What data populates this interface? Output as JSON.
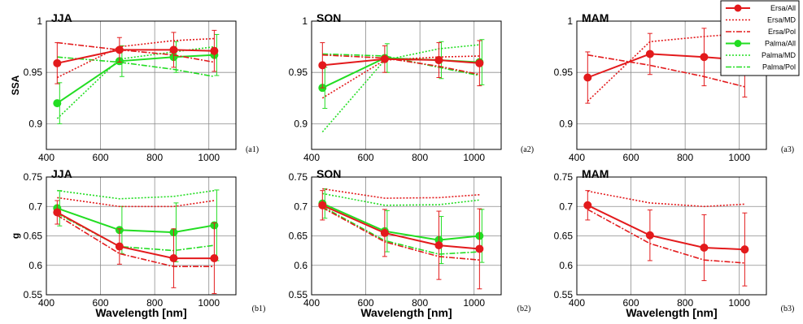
{
  "colors": {
    "ersa": "#e31a1c",
    "palma": "#22dd22",
    "grid": "#8c8c8c",
    "axis": "#000000"
  },
  "legend": {
    "placement": "top-right",
    "entries": [
      {
        "label": "Ersa/All",
        "color": "#e31a1c",
        "style": "solid",
        "marker": true
      },
      {
        "label": "Ersa/MD",
        "color": "#e31a1c",
        "style": "dotted",
        "marker": false
      },
      {
        "label": "Ersa/Pol",
        "color": "#e31a1c",
        "style": "dashdot",
        "marker": false
      },
      {
        "label": "Palma/All",
        "color": "#22dd22",
        "style": "solid",
        "marker": true
      },
      {
        "label": "Palma/MD",
        "color": "#22dd22",
        "style": "dotted",
        "marker": false
      },
      {
        "label": "Palma/Pol",
        "color": "#22dd22",
        "style": "dashdot",
        "marker": false
      }
    ]
  },
  "chart_data": [
    {
      "type": "line",
      "panel": "(a1)",
      "title": "JJA",
      "ylabel": "SSA",
      "xlabel": "",
      "xlim": [
        400,
        1100
      ],
      "ylim": [
        0.875,
        1.0
      ],
      "xticks": [
        "400",
        "600",
        "800",
        "1000"
      ],
      "yticks": [
        "0.9",
        "0.95",
        "1"
      ],
      "x": [
        440,
        670,
        870,
        1020
      ],
      "series": [
        {
          "name": "Ersa/All",
          "values": [
            0.959,
            0.972,
            0.972,
            0.971
          ],
          "err": [
            0.02,
            0.012,
            0.017,
            0.02
          ]
        },
        {
          "name": "Ersa/MD",
          "values": [
            0.945,
            0.975,
            0.981,
            0.983
          ]
        },
        {
          "name": "Ersa/Pol",
          "values": [
            0.979,
            0.972,
            0.967,
            0.96
          ]
        },
        {
          "name": "Palma/All",
          "values": [
            0.92,
            0.961,
            0.965,
            0.967
          ],
          "err": [
            0.02,
            0.015,
            0.015,
            0.02
          ]
        },
        {
          "name": "Palma/MD",
          "values": [
            0.905,
            0.963,
            0.97,
            0.975
          ]
        },
        {
          "name": "Palma/Pol",
          "values": [
            0.965,
            0.96,
            0.953,
            0.946
          ]
        }
      ]
    },
    {
      "type": "line",
      "panel": "(a2)",
      "title": "SON",
      "ylabel": "",
      "xlabel": "",
      "xlim": [
        400,
        1100
      ],
      "ylim": [
        0.875,
        1.0
      ],
      "xticks": [
        "400",
        "600",
        "800",
        "1000"
      ],
      "yticks": [
        "0.9",
        "0.95",
        "1"
      ],
      "x": [
        440,
        670,
        870,
        1020
      ],
      "series": [
        {
          "name": "Ersa/All",
          "values": [
            0.957,
            0.963,
            0.962,
            0.959
          ],
          "err": [
            0.022,
            0.013,
            0.017,
            0.022
          ]
        },
        {
          "name": "Ersa/MD",
          "values": [
            0.925,
            0.962,
            0.965,
            0.966
          ]
        },
        {
          "name": "Ersa/Pol",
          "values": [
            0.967,
            0.964,
            0.956,
            0.948
          ]
        },
        {
          "name": "Palma/All",
          "values": [
            0.935,
            0.964,
            0.962,
            0.96
          ],
          "err": [
            0.02,
            0.014,
            0.018,
            0.022
          ]
        },
        {
          "name": "Palma/MD",
          "values": [
            0.892,
            0.962,
            0.973,
            0.977
          ]
        },
        {
          "name": "Palma/Pol",
          "values": [
            0.968,
            0.966,
            0.955,
            0.947
          ]
        }
      ]
    },
    {
      "type": "line",
      "panel": "(a3)",
      "title": "MAM",
      "ylabel": "",
      "xlabel": "",
      "xlim": [
        400,
        1100
      ],
      "ylim": [
        0.875,
        1.0
      ],
      "xticks": [
        "400",
        "600",
        "800",
        "1000"
      ],
      "yticks": [
        "0.9",
        "0.95",
        "1"
      ],
      "x": [
        440,
        670,
        870,
        1020
      ],
      "series": [
        {
          "name": "Ersa/All",
          "values": [
            0.945,
            0.968,
            0.965,
            0.962
          ],
          "err": [
            0.025,
            0.02,
            0.028,
            0.036
          ]
        },
        {
          "name": "Ersa/MD",
          "values": [
            0.922,
            0.98,
            0.985,
            0.988
          ]
        },
        {
          "name": "Ersa/Pol",
          "values": [
            0.967,
            0.957,
            0.946,
            0.936
          ]
        }
      ]
    },
    {
      "type": "line",
      "panel": "(b1)",
      "title": "JJA",
      "ylabel": "g",
      "xlabel": "Wavelength [nm]",
      "xlim": [
        400,
        1100
      ],
      "ylim": [
        0.55,
        0.75
      ],
      "xticks": [
        "400",
        "600",
        "800",
        "1000"
      ],
      "yticks": [
        "0.55",
        "0.6",
        "0.65",
        "0.7",
        "0.75"
      ],
      "x": [
        440,
        670,
        870,
        1020
      ],
      "series": [
        {
          "name": "Ersa/All",
          "values": [
            0.69,
            0.632,
            0.612,
            0.612
          ],
          "err": [
            0.02,
            0.03,
            0.05,
            0.06
          ]
        },
        {
          "name": "Ersa/MD",
          "values": [
            0.715,
            0.7,
            0.7,
            0.71
          ]
        },
        {
          "name": "Ersa/Pol",
          "values": [
            0.685,
            0.62,
            0.598,
            0.598
          ]
        },
        {
          "name": "Palma/All",
          "values": [
            0.697,
            0.66,
            0.656,
            0.668
          ],
          "err": [
            0.03,
            0.04,
            0.05,
            0.06
          ]
        },
        {
          "name": "Palma/MD",
          "values": [
            0.727,
            0.713,
            0.717,
            0.727
          ]
        },
        {
          "name": "Palma/Pol",
          "values": [
            0.688,
            0.632,
            0.625,
            0.634
          ]
        }
      ]
    },
    {
      "type": "line",
      "panel": "(b2)",
      "title": "SON",
      "ylabel": "",
      "xlabel": "Wavelength [nm]",
      "xlim": [
        400,
        1100
      ],
      "ylim": [
        0.55,
        0.75
      ],
      "xticks": [
        "400",
        "600",
        "800",
        "1000"
      ],
      "yticks": [
        "0.55",
        "0.6",
        "0.65",
        "0.7",
        "0.75"
      ],
      "x": [
        440,
        670,
        870,
        1020
      ],
      "series": [
        {
          "name": "Ersa/All",
          "values": [
            0.702,
            0.655,
            0.634,
            0.628
          ],
          "err": [
            0.025,
            0.04,
            0.058,
            0.068
          ]
        },
        {
          "name": "Ersa/MD",
          "values": [
            0.73,
            0.714,
            0.715,
            0.72
          ]
        },
        {
          "name": "Ersa/Pol",
          "values": [
            0.698,
            0.64,
            0.615,
            0.609
          ]
        },
        {
          "name": "Palma/All",
          "values": [
            0.705,
            0.658,
            0.643,
            0.65
          ],
          "err": [
            0.025,
            0.035,
            0.04,
            0.045
          ]
        },
        {
          "name": "Palma/MD",
          "values": [
            0.722,
            0.702,
            0.703,
            0.711
          ]
        },
        {
          "name": "Palma/Pol",
          "values": [
            0.7,
            0.642,
            0.619,
            0.623
          ]
        }
      ]
    },
    {
      "type": "line",
      "panel": "(b3)",
      "title": "MAM",
      "ylabel": "",
      "xlabel": "Wavelength [nm]",
      "xlim": [
        400,
        1100
      ],
      "ylim": [
        0.55,
        0.75
      ],
      "xticks": [
        "400",
        "600",
        "800",
        "1000"
      ],
      "yticks": [
        "0.55",
        "0.6",
        "0.65",
        "0.7",
        "0.75"
      ],
      "x": [
        440,
        670,
        870,
        1020
      ],
      "series": [
        {
          "name": "Ersa/All",
          "values": [
            0.702,
            0.651,
            0.63,
            0.627
          ],
          "err": [
            0.025,
            0.043,
            0.056,
            0.062
          ]
        },
        {
          "name": "Ersa/MD",
          "values": [
            0.726,
            0.706,
            0.7,
            0.704
          ]
        },
        {
          "name": "Ersa/Pol",
          "values": [
            0.695,
            0.637,
            0.609,
            0.604
          ]
        }
      ]
    }
  ]
}
